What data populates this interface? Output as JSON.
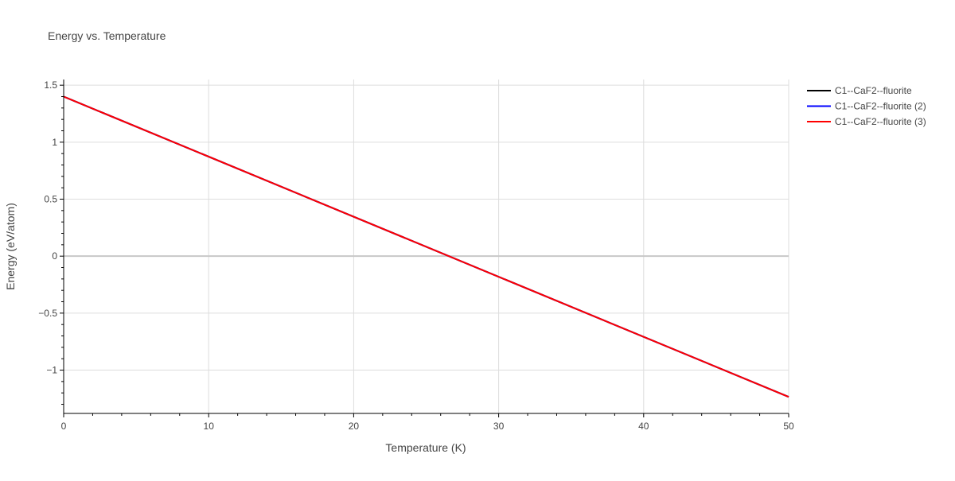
{
  "chart_data": {
    "type": "line",
    "title": "Energy vs. Temperature",
    "xlabel": "Temperature (K)",
    "ylabel": "Energy (eV/atom)",
    "xlim": [
      0,
      50
    ],
    "ylim": [
      -1.38,
      1.55
    ],
    "x_ticks": [
      0,
      10,
      20,
      30,
      40,
      50
    ],
    "x_tick_labels": [
      "0",
      "10",
      "20",
      "30",
      "40",
      "50"
    ],
    "y_ticks": [
      -1,
      -0.5,
      0,
      0.5,
      1,
      1.5
    ],
    "y_tick_labels": [
      "−1",
      "−0.5",
      "0",
      "0.5",
      "1",
      "1.5"
    ],
    "grid": true,
    "legend_position": "top-right",
    "series": [
      {
        "name": "C1--CaF2--fluorite",
        "color": "#000000",
        "x": [
          0,
          50
        ],
        "y": [
          1.4,
          -1.235
        ]
      },
      {
        "name": "C1--CaF2--fluorite (2)",
        "color": "#0000ff",
        "x": [
          0,
          50
        ],
        "y": [
          1.4,
          -1.235
        ]
      },
      {
        "name": "C1--CaF2--fluorite (3)",
        "color": "#ff0000",
        "x": [
          0,
          50
        ],
        "y": [
          1.4,
          -1.235
        ]
      }
    ]
  }
}
